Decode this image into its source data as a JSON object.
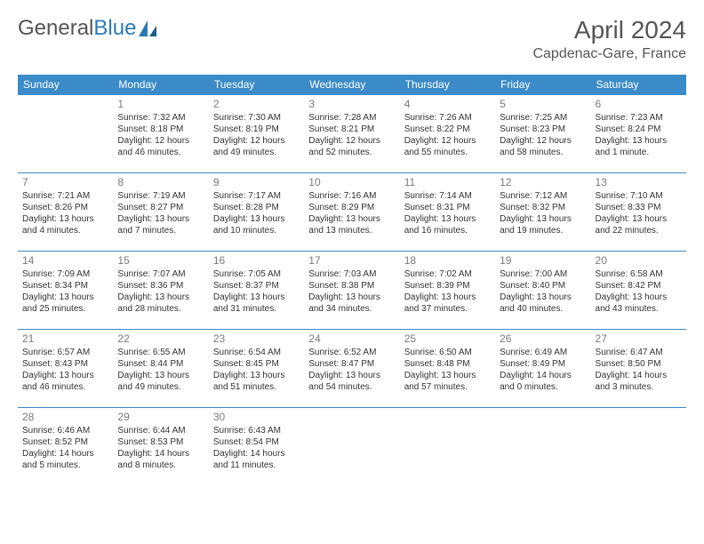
{
  "logo": {
    "text1": "General",
    "text2": "Blue"
  },
  "title": "April 2024",
  "location": "Capdenac-Gare, France",
  "day_headers": [
    "Sunday",
    "Monday",
    "Tuesday",
    "Wednesday",
    "Thursday",
    "Friday",
    "Saturday"
  ],
  "header_bg": "#3b8bc8",
  "header_fg": "#ffffff",
  "border_color": "#3b8bc8",
  "text_color": "#333333",
  "daynum_color": "#7a7a7a",
  "font_family": "Arial",
  "title_fontsize": 28,
  "location_fontsize": 16,
  "header_fontsize": 12,
  "daynum_fontsize": 12,
  "info_fontsize": 10,
  "weeks": [
    [
      {},
      {
        "n": "1",
        "sr": "7:32 AM",
        "ss": "8:18 PM",
        "dl": "12 hours and 46 minutes."
      },
      {
        "n": "2",
        "sr": "7:30 AM",
        "ss": "8:19 PM",
        "dl": "12 hours and 49 minutes."
      },
      {
        "n": "3",
        "sr": "7:28 AM",
        "ss": "8:21 PM",
        "dl": "12 hours and 52 minutes."
      },
      {
        "n": "4",
        "sr": "7:26 AM",
        "ss": "8:22 PM",
        "dl": "12 hours and 55 minutes."
      },
      {
        "n": "5",
        "sr": "7:25 AM",
        "ss": "8:23 PM",
        "dl": "12 hours and 58 minutes."
      },
      {
        "n": "6",
        "sr": "7:23 AM",
        "ss": "8:24 PM",
        "dl": "13 hours and 1 minute."
      }
    ],
    [
      {
        "n": "7",
        "sr": "7:21 AM",
        "ss": "8:26 PM",
        "dl": "13 hours and 4 minutes."
      },
      {
        "n": "8",
        "sr": "7:19 AM",
        "ss": "8:27 PM",
        "dl": "13 hours and 7 minutes."
      },
      {
        "n": "9",
        "sr": "7:17 AM",
        "ss": "8:28 PM",
        "dl": "13 hours and 10 minutes."
      },
      {
        "n": "10",
        "sr": "7:16 AM",
        "ss": "8:29 PM",
        "dl": "13 hours and 13 minutes."
      },
      {
        "n": "11",
        "sr": "7:14 AM",
        "ss": "8:31 PM",
        "dl": "13 hours and 16 minutes."
      },
      {
        "n": "12",
        "sr": "7:12 AM",
        "ss": "8:32 PM",
        "dl": "13 hours and 19 minutes."
      },
      {
        "n": "13",
        "sr": "7:10 AM",
        "ss": "8:33 PM",
        "dl": "13 hours and 22 minutes."
      }
    ],
    [
      {
        "n": "14",
        "sr": "7:09 AM",
        "ss": "8:34 PM",
        "dl": "13 hours and 25 minutes."
      },
      {
        "n": "15",
        "sr": "7:07 AM",
        "ss": "8:36 PM",
        "dl": "13 hours and 28 minutes."
      },
      {
        "n": "16",
        "sr": "7:05 AM",
        "ss": "8:37 PM",
        "dl": "13 hours and 31 minutes."
      },
      {
        "n": "17",
        "sr": "7:03 AM",
        "ss": "8:38 PM",
        "dl": "13 hours and 34 minutes."
      },
      {
        "n": "18",
        "sr": "7:02 AM",
        "ss": "8:39 PM",
        "dl": "13 hours and 37 minutes."
      },
      {
        "n": "19",
        "sr": "7:00 AM",
        "ss": "8:40 PM",
        "dl": "13 hours and 40 minutes."
      },
      {
        "n": "20",
        "sr": "6:58 AM",
        "ss": "8:42 PM",
        "dl": "13 hours and 43 minutes."
      }
    ],
    [
      {
        "n": "21",
        "sr": "6:57 AM",
        "ss": "8:43 PM",
        "dl": "13 hours and 46 minutes."
      },
      {
        "n": "22",
        "sr": "6:55 AM",
        "ss": "8:44 PM",
        "dl": "13 hours and 49 minutes."
      },
      {
        "n": "23",
        "sr": "6:54 AM",
        "ss": "8:45 PM",
        "dl": "13 hours and 51 minutes."
      },
      {
        "n": "24",
        "sr": "6:52 AM",
        "ss": "8:47 PM",
        "dl": "13 hours and 54 minutes."
      },
      {
        "n": "25",
        "sr": "6:50 AM",
        "ss": "8:48 PM",
        "dl": "13 hours and 57 minutes."
      },
      {
        "n": "26",
        "sr": "6:49 AM",
        "ss": "8:49 PM",
        "dl": "14 hours and 0 minutes."
      },
      {
        "n": "27",
        "sr": "6:47 AM",
        "ss": "8:50 PM",
        "dl": "14 hours and 3 minutes."
      }
    ],
    [
      {
        "n": "28",
        "sr": "6:46 AM",
        "ss": "8:52 PM",
        "dl": "14 hours and 5 minutes."
      },
      {
        "n": "29",
        "sr": "6:44 AM",
        "ss": "8:53 PM",
        "dl": "14 hours and 8 minutes."
      },
      {
        "n": "30",
        "sr": "6:43 AM",
        "ss": "8:54 PM",
        "dl": "14 hours and 11 minutes."
      },
      {},
      {},
      {},
      {}
    ]
  ]
}
